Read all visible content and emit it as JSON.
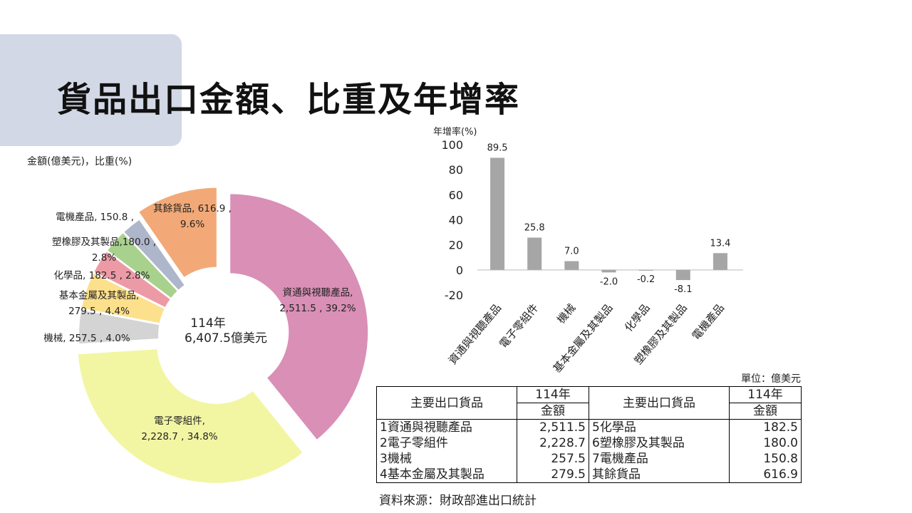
{
  "page_title": "貨品出口金額、比重及年增率",
  "unit_label": "單位：億美元",
  "source": "資料來源：財政部進出口統計",
  "colors": {
    "title_bg": "#d3d8e6",
    "bar": "#a6a6a6"
  },
  "table": {
    "header": {
      "item": "主要出口貨品",
      "year": "114年",
      "amount": "金額"
    },
    "left_rows": [
      {
        "name": "1資通與視聽產品",
        "value": "2,511.5"
      },
      {
        "name": "2電子零組件",
        "value": "2,228.7"
      },
      {
        "name": "3機械",
        "value": "257.5"
      },
      {
        "name": "4基本金屬及其製品",
        "value": "279.5"
      }
    ],
    "right_rows": [
      {
        "name": "5化學品",
        "value": "182.5"
      },
      {
        "name": "6塑橡膠及其製品",
        "value": "180.0"
      },
      {
        "name": "7電機產品",
        "value": "150.8"
      },
      {
        "name": "其餘貨品",
        "value": "616.9"
      }
    ]
  },
  "chart_data": [
    {
      "type": "pie",
      "variant": "donut",
      "ylabel": "金額(億美元)，比重(%)",
      "center_label": [
        "114年",
        "6,407.5億美元"
      ],
      "slices": [
        {
          "name": "資通與視聽產品",
          "value": 2511.5,
          "percent": 39.2,
          "label": [
            "資通與視聽產品,",
            "2,511.5 , 39.2%"
          ],
          "color": "#d98fb6"
        },
        {
          "name": "電子零組件",
          "value": 2228.7,
          "percent": 34.8,
          "label": [
            "電子零組件,",
            "2,228.7 , 34.8%"
          ],
          "color": "#f2f6a3"
        },
        {
          "name": "機械",
          "value": 257.5,
          "percent": 4.0,
          "label": [
            "機械, 257.5 , 4.0%"
          ],
          "color": "#d4d4d4"
        },
        {
          "name": "基本金屬及其製品",
          "value": 279.5,
          "percent": 4.4,
          "label": [
            "基本金屬及其製品,",
            "279.5 , 4.4%"
          ],
          "color": "#fde08c"
        },
        {
          "name": "化學品",
          "value": 182.5,
          "percent": 2.8,
          "label": [
            "化學品, 182.5 , 2.8%"
          ],
          "color": "#ec9aa6"
        },
        {
          "name": "塑橡膠及其製品",
          "value": 180.0,
          "percent": 2.8,
          "label": [
            "塑橡膠及其製品,180.0 ,",
            "2.8%"
          ],
          "color": "#a8d18d"
        },
        {
          "name": "電機產品",
          "value": 150.8,
          "percent": 2.4,
          "label": [
            "電機產品, 150.8 ,"
          ],
          "color": "#aeb6cb"
        },
        {
          "name": "其餘貨品",
          "value": 616.9,
          "percent": 9.6,
          "label": [
            "其餘貨品, 616.9 ,",
            "9.6%"
          ],
          "color": "#f2a977"
        }
      ]
    },
    {
      "type": "bar",
      "ylabel": "年增率(%)",
      "ylim": [
        -20,
        100
      ],
      "yticks": [
        100,
        80,
        60,
        40,
        20,
        0,
        -20
      ],
      "categories": [
        "資通與視聽產品",
        "電子零組件",
        "機械",
        "基本金屬及其製品",
        "化學品",
        "塑橡膠及其製品",
        "電機產品"
      ],
      "values": [
        89.5,
        25.8,
        7.0,
        -2.0,
        -0.2,
        -8.1,
        13.4
      ],
      "value_labels": [
        "89.5",
        "25.8",
        "7.0",
        "-2.0",
        "-0.2",
        "-8.1",
        "13.4"
      ],
      "grid": false
    }
  ]
}
